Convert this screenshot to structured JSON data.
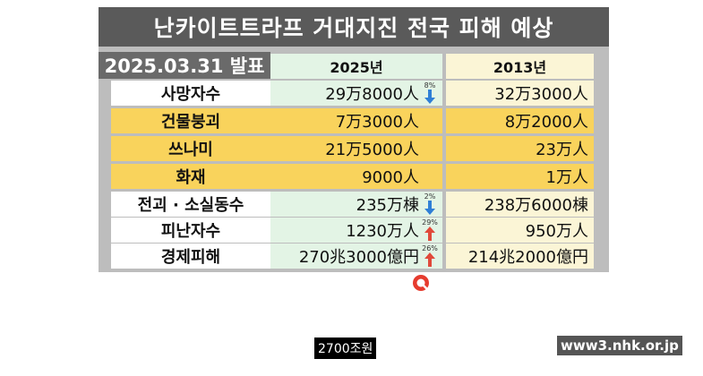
{
  "title": "난카이트트라프 거대지진 전국 피해 예상",
  "announced": "2025.03.31 발표",
  "columns": {
    "y2025": "2025년",
    "y2013": "2013년"
  },
  "rows": [
    {
      "label": "사망자수",
      "v2025": "29万8000人",
      "v2013": "32万3000人",
      "change": {
        "pct": "8%",
        "dir": "down"
      }
    },
    {
      "label": "건물붕괴",
      "v2025": "7万3000人",
      "v2013": "8万2000人"
    },
    {
      "label": "쓰나미",
      "v2025": "21万5000人",
      "v2013": "23万人"
    },
    {
      "label": "화재",
      "v2025": "9000人",
      "v2013": "1万人"
    },
    {
      "label": "전괴 · 소실동수",
      "v2025": "235万棟",
      "v2013": "238万6000棟",
      "change": {
        "pct": "2%",
        "dir": "down"
      }
    },
    {
      "label": "피난자수",
      "v2025": "1230万人",
      "v2013": "950万人",
      "change": {
        "pct": "29%",
        "dir": "up"
      }
    },
    {
      "label": "경제피해",
      "v2025": "270兆3000億円",
      "v2013": "214兆2000億円",
      "change": {
        "pct": "26%",
        "dir": "up"
      }
    }
  ],
  "caption": "2700조원",
  "source": "www3.nhk.or.jp",
  "colors": {
    "down": "#2f7fd6",
    "up": "#e0493a",
    "highlight": "#f9d35c",
    "col2025": "#e3f4e5",
    "col2013": "#fbf5d6"
  },
  "icons": {
    "down_arrow": "arrow-down-icon",
    "up_arrow": "arrow-up-icon",
    "cursor": "cursor-icon"
  }
}
